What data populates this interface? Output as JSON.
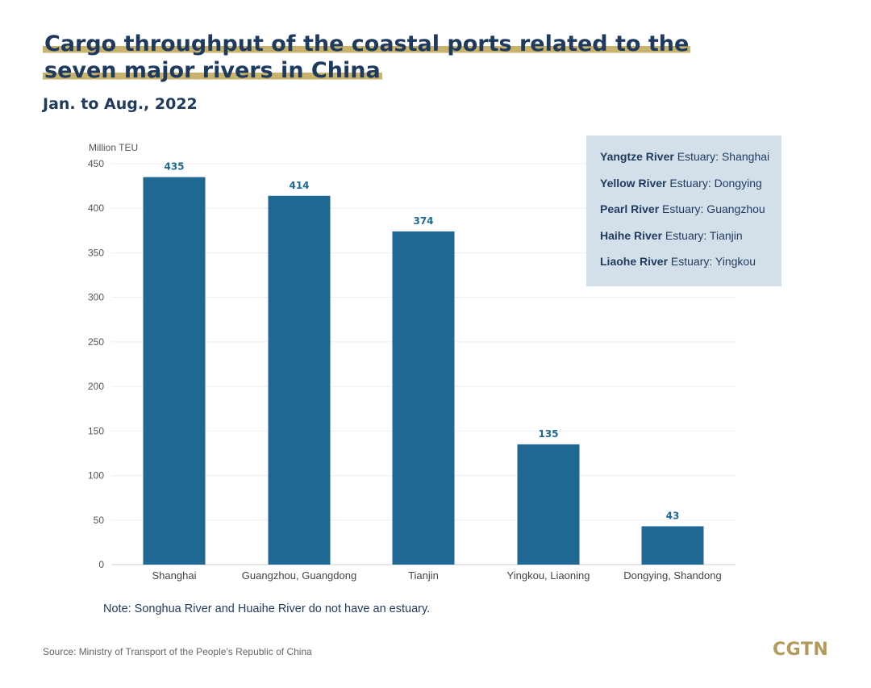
{
  "title": "Cargo throughput of the coastal ports related to the seven major rivers in China",
  "subtitle": "Jan. to Aug., 2022",
  "note": "Note: Songhua River and Huaihe River do not have an estuary.",
  "source": "Source: Ministry of Transport of the People's Republic of China",
  "logo": "CGTN",
  "colors": {
    "bar": "#1f6894",
    "title": "#1e3a5f",
    "highlight": "#c9b26b",
    "legend_bg": "#d3e0e9",
    "logo": "#b49a5a"
  },
  "legend": [
    {
      "river": "Yangtze River",
      "rest": " Estuary: Shanghai"
    },
    {
      "river": "Yellow River",
      "rest": " Estuary: Dongying"
    },
    {
      "river": "Pearl River",
      "rest": " Estuary: Guangzhou"
    },
    {
      "river": "Haihe River",
      "rest": " Estuary: Tianjin"
    },
    {
      "river": "Liaohe River",
      "rest": " Estuary: Yingkou"
    }
  ],
  "chart_data": {
    "type": "bar",
    "title": "Cargo throughput of the coastal ports related to the seven major rivers in China",
    "subtitle": "Jan. to Aug., 2022",
    "ylabel": "Million TEU",
    "xlabel": "",
    "categories": [
      "Shanghai",
      "Guangzhou, Guangdong",
      "Tianjin",
      "Yingkou, Liaoning",
      "Dongying, Shandong"
    ],
    "values": [
      435,
      414,
      374,
      135,
      43
    ],
    "ylim": [
      0,
      450
    ],
    "yticks": [
      0,
      50,
      100,
      150,
      200,
      250,
      300,
      350,
      400,
      450
    ],
    "grid": true
  }
}
